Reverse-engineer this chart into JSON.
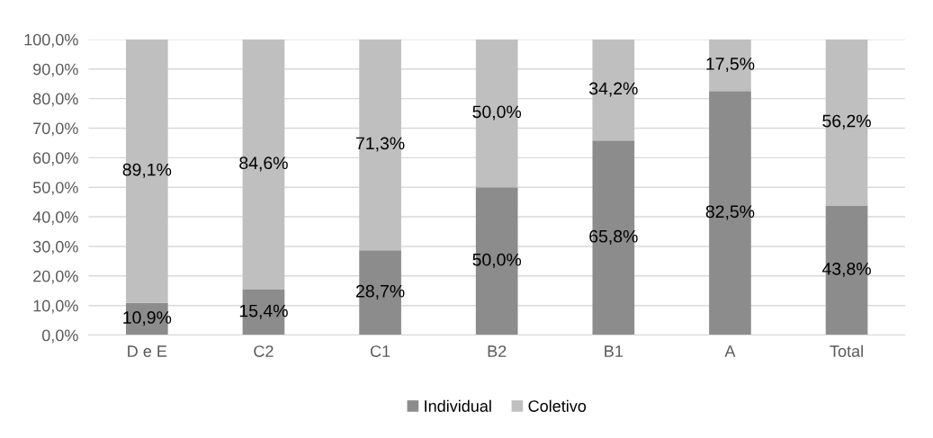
{
  "chart_data": {
    "type": "bar",
    "stacked": true,
    "categories": [
      "D e E",
      "C2",
      "C1",
      "B2",
      "B1",
      "A",
      "Total"
    ],
    "series": [
      {
        "name": "Individual",
        "color": "#8c8c8c",
        "values": [
          10.9,
          15.4,
          28.7,
          50.0,
          65.8,
          82.5,
          43.8
        ],
        "value_labels": [
          "10,9%",
          "15,4%",
          "28,7%",
          "50,0%",
          "65,8%",
          "82,5%",
          "43,8%"
        ]
      },
      {
        "name": "Coletivo",
        "color": "#bfbfbf",
        "values": [
          89.1,
          84.6,
          71.3,
          50.0,
          34.2,
          17.5,
          56.2
        ],
        "value_labels": [
          "89,1%",
          "84,6%",
          "71,3%",
          "50,0%",
          "34,2%",
          "17,5%",
          "56,2%"
        ]
      }
    ],
    "ylim": [
      0,
      100
    ],
    "yticks": [
      {
        "value": 0,
        "label": "0,0%"
      },
      {
        "value": 10,
        "label": "10,0%"
      },
      {
        "value": 20,
        "label": "20,0%"
      },
      {
        "value": 30,
        "label": "30,0%"
      },
      {
        "value": 40,
        "label": "40,0%"
      },
      {
        "value": 50,
        "label": "50,0%"
      },
      {
        "value": 60,
        "label": "60,0%"
      },
      {
        "value": 70,
        "label": "70,0%"
      },
      {
        "value": 80,
        "label": "80,0%"
      },
      {
        "value": 90,
        "label": "90,0%"
      },
      {
        "value": 100,
        "label": "100,0%"
      }
    ],
    "grid": "y",
    "legend": "bottom"
  }
}
